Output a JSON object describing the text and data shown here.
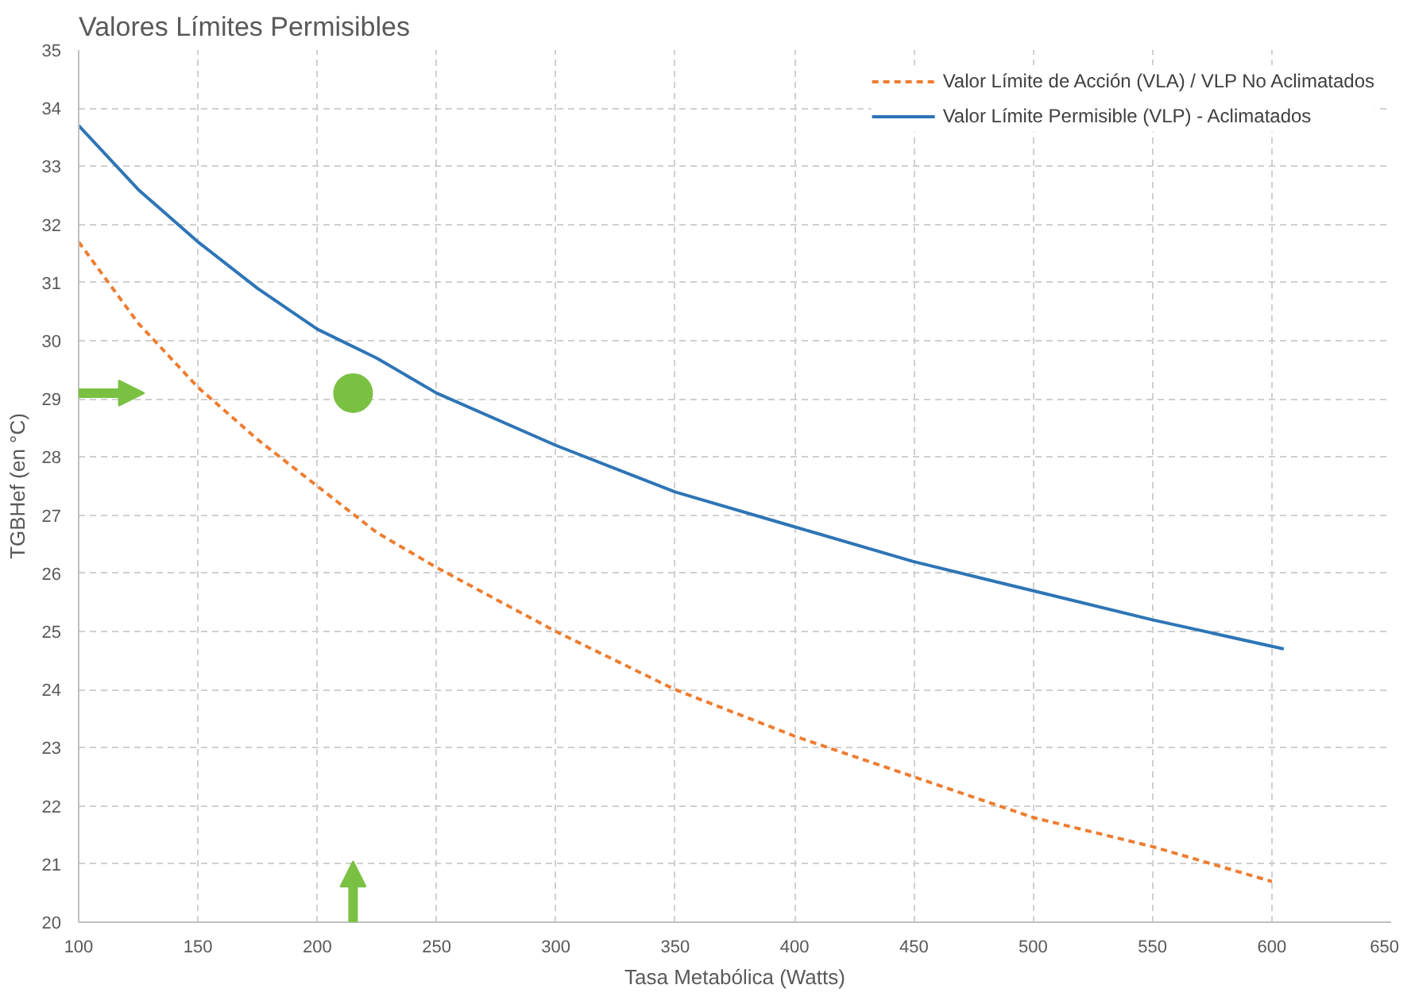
{
  "chart_data": {
    "type": "line",
    "title": "Valores Límites Permisibles",
    "xlabel": "Tasa Metabólica (Watts)",
    "ylabel": "TGBHef (en °C)",
    "xlim": [
      100,
      650
    ],
    "xticks": [
      100,
      150,
      200,
      250,
      300,
      350,
      400,
      450,
      500,
      550,
      600,
      650
    ],
    "ylim": [
      20,
      35
    ],
    "yticks": [
      20,
      21,
      22,
      23,
      24,
      25,
      26,
      27,
      28,
      29,
      30,
      31,
      32,
      33,
      34,
      35
    ],
    "grid": true,
    "legend": "top right",
    "series": [
      {
        "name": "Valor Límite de Acción (VLA) / VLP No Aclimatados",
        "color": "#ed7d31",
        "line_style": "dashed",
        "x": [
          100,
          125,
          150,
          175,
          200,
          225,
          250,
          300,
          350,
          400,
          450,
          500,
          550,
          600
        ],
        "values": [
          31.7,
          30.3,
          29.2,
          28.3,
          27.5,
          26.7,
          26.1,
          25.0,
          24.0,
          23.2,
          22.5,
          21.8,
          21.3,
          20.7
        ]
      },
      {
        "name": "Valor Límite Permisible (VLP) - Aclimatados",
        "color": "#2e75b6",
        "line_style": "solid",
        "x": [
          100,
          125,
          150,
          175,
          200,
          225,
          250,
          300,
          350,
          400,
          450,
          500,
          550,
          605
        ],
        "values": [
          33.7,
          32.6,
          31.7,
          30.9,
          30.2,
          29.7,
          29.1,
          28.2,
          27.4,
          26.8,
          26.2,
          25.7,
          25.2,
          24.7
        ]
      },
      {
        "type": "scatter",
        "color": "#7ac143",
        "marker": "circle",
        "x": [
          215
        ],
        "values": [
          29.1
        ]
      }
    ]
  }
}
